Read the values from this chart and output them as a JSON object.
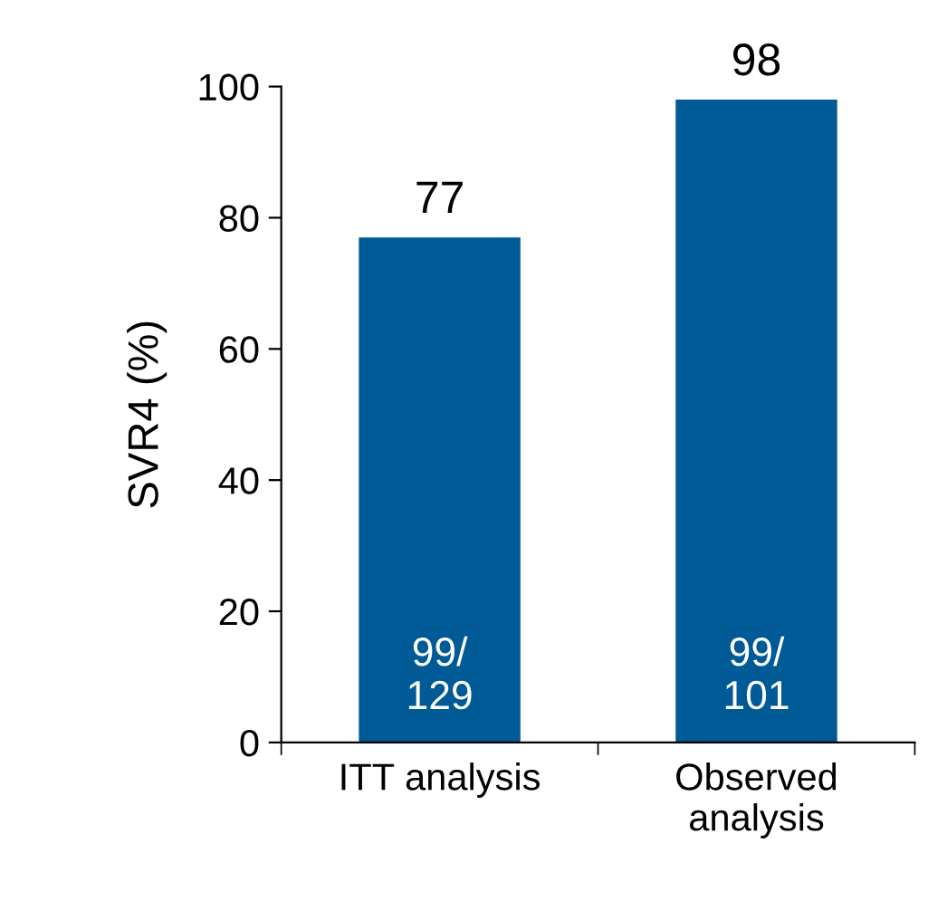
{
  "chart_data": {
    "type": "bar",
    "ylabel": "SVR4 (%)",
    "categories": [
      "ITT analysis",
      "Observed\nanalysis"
    ],
    "values": [
      77,
      98
    ],
    "color": "#005a96",
    "data_labels": true,
    "ylim": [
      0,
      100
    ],
    "yticks": [
      0,
      20,
      40,
      60,
      80,
      100
    ],
    "grid": false,
    "legend": false,
    "annotations": [
      "99/\n129",
      "99/\n101"
    ]
  }
}
